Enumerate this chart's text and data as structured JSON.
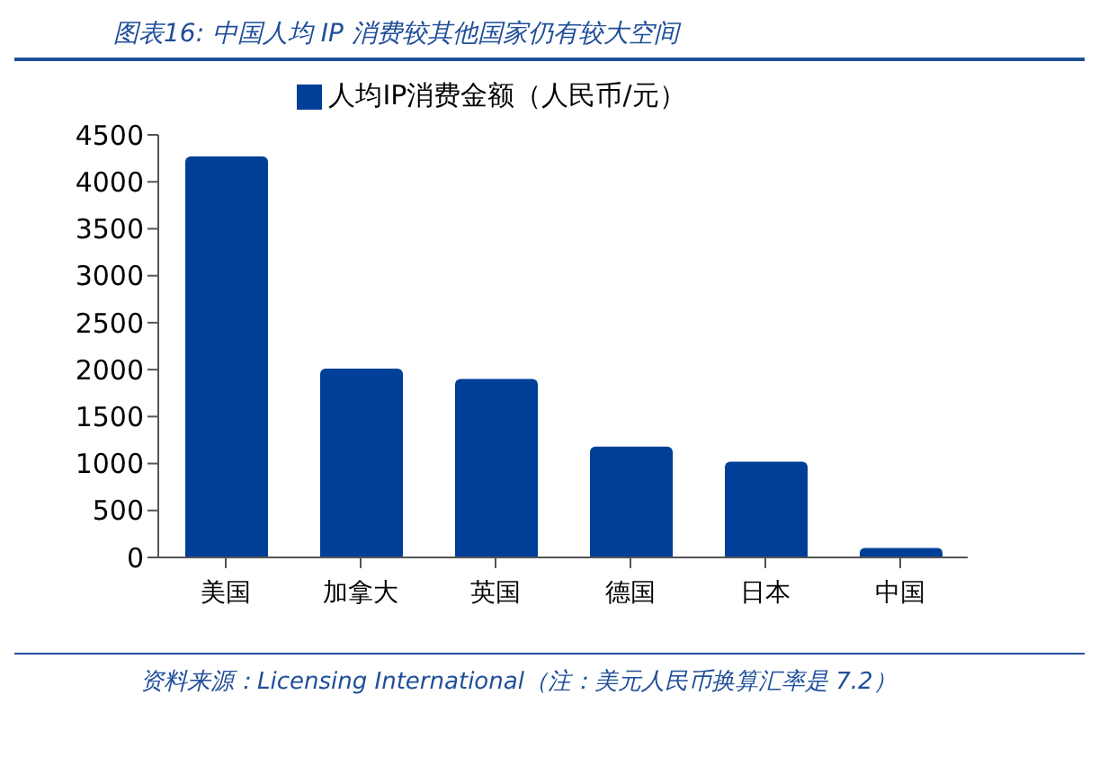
{
  "chart_data": {
    "type": "bar",
    "title": "图表16:  中国人均 IP 消费较其他国家仍有较大空间",
    "categories": [
      "美国",
      "加拿大",
      "英国",
      "德国",
      "日本",
      "中国"
    ],
    "series": [
      {
        "name": "人均IP消费金额（人民币/元）",
        "color": "#003f98",
        "values": [
          4270,
          2010,
          1900,
          1180,
          1020,
          100
        ]
      }
    ],
    "ylim": [
      0,
      4500
    ],
    "yticks": [
      0,
      500,
      1000,
      1500,
      2000,
      2500,
      3000,
      3500,
      4000,
      4500
    ],
    "grid": false,
    "legend": "top",
    "annotations": [
      "资料来源：Licensing International（注：美元人民币换算汇率是 7.2）"
    ]
  }
}
